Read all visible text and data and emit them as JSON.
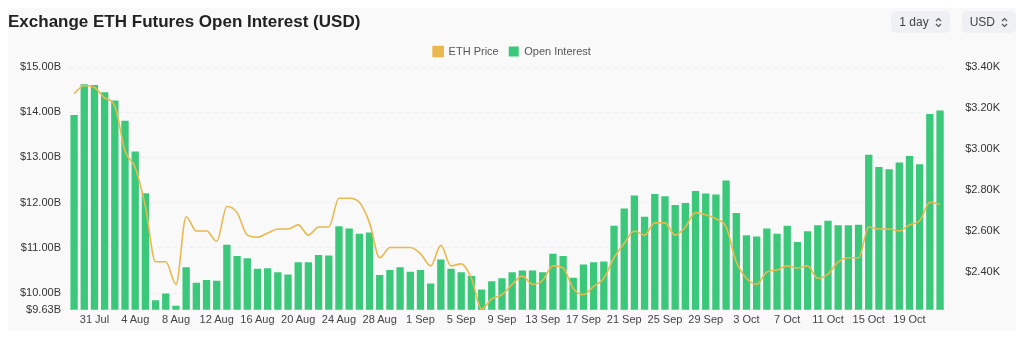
{
  "chart_data": {
    "type": "bar",
    "title": "Exchange ETH Futures Open Interest (USD)",
    "annotations": [
      "1 day",
      "USD"
    ],
    "categories": [
      null,
      null,
      "31 Jul",
      null,
      null,
      null,
      "4 Aug",
      null,
      null,
      null,
      "8 Aug",
      null,
      null,
      null,
      "12 Aug",
      null,
      null,
      null,
      "16 Aug",
      null,
      null,
      null,
      "20 Aug",
      null,
      null,
      null,
      "24 Aug",
      null,
      null,
      null,
      "28 Aug",
      null,
      null,
      null,
      "1 Sep",
      null,
      null,
      null,
      "5 Sep",
      null,
      null,
      null,
      "9 Sep",
      null,
      null,
      null,
      "13 Sep",
      null,
      null,
      null,
      "17 Sep",
      null,
      null,
      null,
      "21 Sep",
      null,
      null,
      null,
      "25 Sep",
      null,
      null,
      null,
      "29 Sep",
      null,
      null,
      null,
      "3 Oct",
      null,
      null,
      null,
      "7 Oct",
      null,
      null,
      null,
      "11 Oct",
      null,
      null,
      null,
      "15 Oct",
      null,
      null,
      null,
      "19 Oct",
      null,
      null,
      null
    ],
    "series": [
      {
        "name": "ETH Price",
        "type": "line",
        "axis": "y2",
        "color": "#e9b84e",
        "values": [
          3.27,
          3.31,
          3.3,
          3.25,
          3.21,
          2.99,
          2.91,
          2.72,
          2.45,
          2.45,
          2.34,
          2.67,
          2.6,
          2.6,
          2.55,
          2.72,
          2.69,
          2.58,
          2.57,
          2.59,
          2.61,
          2.61,
          2.63,
          2.58,
          2.62,
          2.62,
          2.76,
          2.76,
          2.74,
          2.64,
          2.47,
          2.52,
          2.52,
          2.52,
          2.49,
          2.43,
          2.53,
          2.43,
          2.44,
          2.37,
          2.22,
          2.27,
          2.29,
          2.34,
          2.38,
          2.34,
          2.36,
          2.43,
          2.42,
          2.32,
          2.29,
          2.33,
          2.37,
          2.47,
          2.54,
          2.6,
          2.58,
          2.64,
          2.64,
          2.58,
          2.62,
          2.69,
          2.68,
          2.66,
          2.62,
          2.45,
          2.37,
          2.34,
          2.4,
          2.41,
          2.43,
          2.42,
          2.43,
          2.37,
          2.39,
          2.45,
          2.47,
          2.47,
          2.62,
          2.61,
          2.61,
          2.6,
          2.63,
          2.65,
          2.74,
          2.73
        ]
      },
      {
        "name": "Open Interest",
        "color": "#3cc87b",
        "values": [
          13.94,
          14.62,
          14.6,
          14.44,
          14.26,
          13.81,
          13.13,
          12.21,
          9.84,
          9.99,
          9.72,
          10.57,
          10.23,
          10.29,
          10.27,
          11.07,
          10.82,
          10.77,
          10.54,
          10.55,
          10.46,
          10.41,
          10.68,
          10.68,
          10.84,
          10.83,
          11.48,
          11.43,
          11.31,
          11.34,
          10.4,
          10.51,
          10.57,
          10.47,
          10.51,
          10.21,
          10.74,
          10.54,
          10.46,
          10.38,
          10.08,
          10.26,
          10.33,
          10.46,
          10.5,
          10.5,
          10.46,
          10.87,
          10.82,
          10.34,
          10.63,
          10.68,
          10.7,
          11.49,
          11.87,
          12.16,
          11.69,
          12.19,
          12.14,
          11.95,
          11.99,
          12.26,
          12.2,
          12.18,
          12.49,
          11.77,
          11.28,
          11.25,
          11.43,
          11.31,
          11.49,
          11.13,
          11.37,
          11.5,
          11.6,
          11.5,
          11.5,
          11.51,
          13.06,
          12.79,
          12.74,
          12.89,
          13.03,
          12.85,
          13.96,
          14.04
        ]
      }
    ],
    "ylim": [
      9.63,
      15
    ],
    "yticks": [
      {
        "value": 9.63,
        "label": "$9.63B"
      },
      {
        "value": 10,
        "label": "$10.00B"
      },
      {
        "value": 11,
        "label": "$11.00B"
      },
      {
        "value": 12,
        "label": "$12.00B"
      },
      {
        "value": 13,
        "label": "$13.00B"
      },
      {
        "value": 14,
        "label": "$14.00B"
      },
      {
        "value": 15,
        "label": "$15.00B"
      }
    ],
    "y2lim": [
      2.216,
      3.4
    ],
    "y2ticks": [
      {
        "value": 2.4,
        "label": "$2.40K"
      },
      {
        "value": 2.6,
        "label": "$2.60K"
      },
      {
        "value": 2.8,
        "label": "$2.80K"
      },
      {
        "value": 3.0,
        "label": "$3.00K"
      },
      {
        "value": 3.2,
        "label": "$3.20K"
      },
      {
        "value": 3.4,
        "label": "$3.40K"
      }
    ],
    "grid": "y",
    "legend": "top",
    "marker": "none",
    "line_style": "solid"
  }
}
